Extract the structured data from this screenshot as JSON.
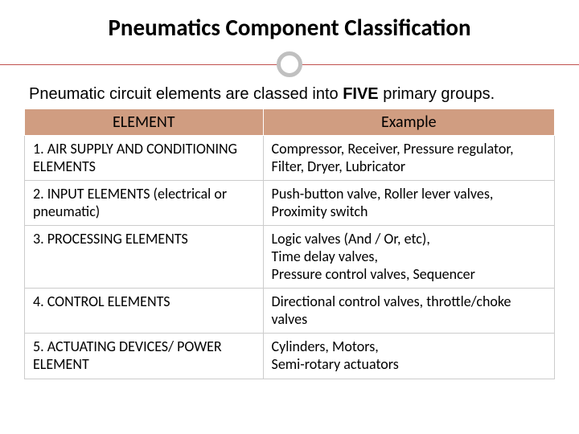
{
  "title": "Pneumatics Component Classification",
  "subtitle_prefix": "Pneumatic circuit elements are classed into ",
  "subtitle_bold": "FIVE",
  "subtitle_suffix": " primary groups.",
  "table": {
    "columns": [
      "ELEMENT",
      "Example"
    ],
    "rows": [
      [
        "1. AIR SUPPLY AND CONDITIONING ELEMENTS",
        "Compressor, Receiver, Pressure regulator, Filter, Dryer, Lubricator"
      ],
      [
        "2. INPUT ELEMENTS (electrical or pneumatic)",
        "Push-button valve, Roller lever valves, Proximity switch"
      ],
      [
        "3. PROCESSING ELEMENTS",
        "Logic valves (And / Or, etc),\nTime delay valves,\nPressure control valves, Sequencer"
      ],
      [
        "4. CONTROL ELEMENTS",
        "Directional control valves, throttle/choke valves"
      ],
      [
        "5. ACTUATING DEVICES/ POWER ELEMENT",
        "Cylinders, Motors,\nSemi-rotary actuators"
      ]
    ],
    "header_bg": "#d09d81",
    "header_fontsize": 20,
    "cell_fontsize": 18,
    "border_color": "#cccccc",
    "col_widths": [
      "45%",
      "55%"
    ]
  },
  "divider": {
    "line_color": "#c0504d",
    "circle_border_color": "#c0c0c0",
    "circle_bg": "#ffffff"
  },
  "title_fontsize": 29,
  "subtitle_fontsize": 20,
  "background_color": "#ffffff"
}
